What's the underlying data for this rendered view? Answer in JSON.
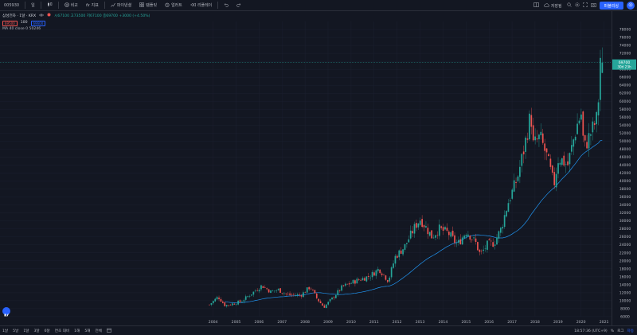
{
  "toolbar": {
    "symbol": "005930",
    "interval": "일",
    "compare": "비교",
    "indicators": "지표",
    "financials": "파이낸셜",
    "template": "템플릿",
    "alert": "얼러트",
    "replay": "리플레이",
    "save": "저장됨",
    "publish": "퍼블리싱"
  },
  "legend": {
    "title": "삼성전자 · 1달 · KRX",
    "ohlc": "시67100 고73500 저67100 종69700 +3000 (+4.50%)",
    "sell_price": "69500",
    "spread": "100",
    "buy_price": "69600",
    "ma": "MA 40 close 0  50246"
  },
  "axis": {
    "last_price": "69700",
    "countdown": "30d 23h"
  },
  "bottom": {
    "ranges": [
      "1날",
      "5날",
      "1달",
      "3달",
      "6달",
      "연초 대비",
      "1해",
      "5해",
      "전체"
    ],
    "time": "18:57:36 (UTC+9)",
    "pct": "%",
    "log": "로그",
    "auto": "자동"
  },
  "chart_data": {
    "type": "candlestick",
    "interval": "1M",
    "x_years": [
      2004,
      2005,
      2006,
      2007,
      2008,
      2009,
      2010,
      2011,
      2012,
      2013,
      2014,
      2015,
      2016,
      2017,
      2018,
      2019,
      2020,
      2021
    ],
    "y_ticks": [
      6000,
      8000,
      10000,
      12000,
      14000,
      16000,
      18000,
      20000,
      22000,
      24000,
      26000,
      28000,
      30000,
      32000,
      34000,
      36000,
      38000,
      40000,
      42000,
      44000,
      46000,
      48000,
      50000,
      52000,
      54000,
      56000,
      58000,
      60000,
      62000,
      64000,
      66000,
      68000,
      70000,
      72000,
      74000,
      76000,
      78000
    ],
    "ylim": [
      4000,
      80000
    ],
    "start": "2003-12",
    "close_anchors": [
      [
        2003.92,
        9000
      ],
      [
        2004.3,
        11000
      ],
      [
        2004.6,
        8800
      ],
      [
        2004.9,
        9200
      ],
      [
        2005.3,
        9800
      ],
      [
        2005.8,
        12000
      ],
      [
        2006.2,
        13800
      ],
      [
        2006.6,
        12200
      ],
      [
        2006.9,
        12800
      ],
      [
        2007.3,
        11500
      ],
      [
        2007.9,
        11400
      ],
      [
        2008.3,
        13500
      ],
      [
        2008.6,
        10500
      ],
      [
        2008.9,
        8400
      ],
      [
        2009.3,
        10800
      ],
      [
        2009.7,
        13500
      ],
      [
        2010.3,
        15000
      ],
      [
        2010.9,
        16200
      ],
      [
        2011.3,
        18000
      ],
      [
        2011.7,
        15000
      ],
      [
        2012.0,
        21000
      ],
      [
        2012.4,
        23500
      ],
      [
        2012.9,
        29000
      ],
      [
        2013.1,
        30500
      ],
      [
        2013.6,
        26000
      ],
      [
        2013.9,
        28000
      ],
      [
        2014.3,
        27000
      ],
      [
        2014.7,
        24000
      ],
      [
        2015.1,
        27500
      ],
      [
        2015.5,
        24500
      ],
      [
        2015.7,
        21500
      ],
      [
        2016.0,
        24000
      ],
      [
        2016.3,
        24500
      ],
      [
        2016.6,
        28000
      ],
      [
        2016.9,
        34500
      ],
      [
        2017.3,
        40500
      ],
      [
        2017.6,
        48000
      ],
      [
        2017.9,
        57000
      ],
      [
        2018.0,
        49000
      ],
      [
        2018.3,
        51000
      ],
      [
        2018.6,
        46000
      ],
      [
        2018.9,
        39000
      ],
      [
        2019.1,
        46000
      ],
      [
        2019.5,
        44000
      ],
      [
        2019.9,
        54000
      ],
      [
        2020.1,
        57000
      ],
      [
        2020.2,
        48000
      ],
      [
        2020.5,
        52000
      ],
      [
        2020.8,
        56000
      ],
      [
        2020.92,
        71000
      ],
      [
        2021.0,
        69700
      ]
    ],
    "ma_period": 40,
    "ma_last": 50246,
    "last_close": 69700
  },
  "colors": {
    "up": "#26a69a",
    "down": "#ef5350",
    "ma": "#2196f3",
    "bg": "#131722",
    "grid": "#1c2030",
    "accent": "#2962ff"
  }
}
